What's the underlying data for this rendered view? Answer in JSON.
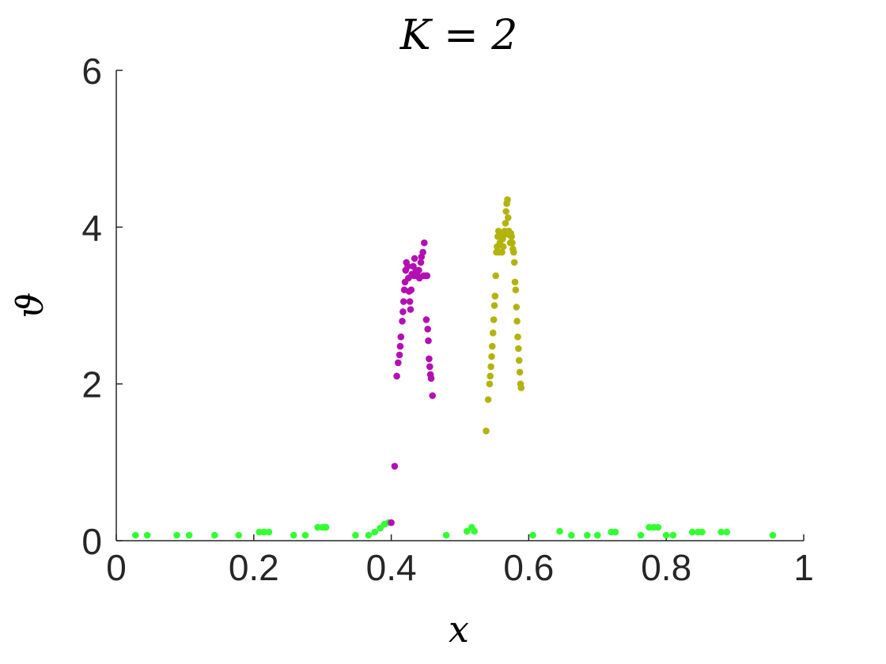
{
  "chart_data": {
    "type": "scatter",
    "title": "K = 2",
    "xlabel": "x",
    "ylabel": "ϑ",
    "xlim": [
      0,
      1
    ],
    "ylim": [
      0,
      6
    ],
    "xticks": [
      0,
      0.2,
      0.4,
      0.6,
      0.8,
      1
    ],
    "yticks": [
      0,
      2,
      4,
      6
    ],
    "xtick_labels": [
      "0",
      "0.2",
      "0.4",
      "0.6",
      "0.8",
      "1"
    ],
    "ytick_labels": [
      "0",
      "2",
      "4",
      "6"
    ],
    "grid": false,
    "legend": "none",
    "series": [
      {
        "color": "#33ff33",
        "points": [
          [
            0.028,
            0.07
          ],
          [
            0.045,
            0.07
          ],
          [
            0.088,
            0.07
          ],
          [
            0.106,
            0.07
          ],
          [
            0.143,
            0.07
          ],
          [
            0.178,
            0.07
          ],
          [
            0.208,
            0.11
          ],
          [
            0.215,
            0.11
          ],
          [
            0.222,
            0.11
          ],
          [
            0.258,
            0.07
          ],
          [
            0.275,
            0.07
          ],
          [
            0.293,
            0.17
          ],
          [
            0.3,
            0.17
          ],
          [
            0.305,
            0.17
          ],
          [
            0.348,
            0.07
          ],
          [
            0.367,
            0.07
          ],
          [
            0.376,
            0.11
          ],
          [
            0.384,
            0.16
          ],
          [
            0.39,
            0.21
          ],
          [
            0.396,
            0.23
          ],
          [
            0.48,
            0.07
          ],
          [
            0.51,
            0.12
          ],
          [
            0.517,
            0.17
          ],
          [
            0.521,
            0.12
          ],
          [
            0.606,
            0.07
          ],
          [
            0.645,
            0.12
          ],
          [
            0.662,
            0.07
          ],
          [
            0.685,
            0.07
          ],
          [
            0.7,
            0.07
          ],
          [
            0.72,
            0.11
          ],
          [
            0.726,
            0.11
          ],
          [
            0.763,
            0.07
          ],
          [
            0.775,
            0.17
          ],
          [
            0.782,
            0.17
          ],
          [
            0.788,
            0.17
          ],
          [
            0.8,
            0.07
          ],
          [
            0.81,
            0.07
          ],
          [
            0.838,
            0.11
          ],
          [
            0.846,
            0.11
          ],
          [
            0.852,
            0.11
          ],
          [
            0.88,
            0.11
          ],
          [
            0.888,
            0.11
          ],
          [
            0.955,
            0.07
          ]
        ]
      },
      {
        "color": "#b30fb3",
        "points": [
          [
            0.4,
            0.23
          ],
          [
            0.405,
            0.95
          ],
          [
            0.408,
            2.1
          ],
          [
            0.41,
            2.27
          ],
          [
            0.412,
            2.37
          ],
          [
            0.413,
            2.48
          ],
          [
            0.414,
            2.6
          ],
          [
            0.416,
            2.8
          ],
          [
            0.417,
            2.92
          ],
          [
            0.418,
            3.05
          ],
          [
            0.419,
            3.2
          ],
          [
            0.42,
            3.3
          ],
          [
            0.421,
            3.45
          ],
          [
            0.422,
            3.55
          ],
          [
            0.424,
            3.5
          ],
          [
            0.425,
            3.35
          ],
          [
            0.426,
            3.18
          ],
          [
            0.427,
            3.05
          ],
          [
            0.428,
            2.95
          ],
          [
            0.429,
            3.2
          ],
          [
            0.43,
            3.4
          ],
          [
            0.432,
            3.5
          ],
          [
            0.433,
            3.38
          ],
          [
            0.434,
            3.6
          ],
          [
            0.436,
            3.45
          ],
          [
            0.437,
            3.38
          ],
          [
            0.438,
            3.38
          ],
          [
            0.44,
            3.45
          ],
          [
            0.441,
            3.35
          ],
          [
            0.443,
            3.55
          ],
          [
            0.444,
            3.62
          ],
          [
            0.446,
            3.68
          ],
          [
            0.448,
            3.8
          ],
          [
            0.447,
            3.38
          ],
          [
            0.45,
            3.38
          ],
          [
            0.452,
            3.38
          ],
          [
            0.451,
            2.82
          ],
          [
            0.453,
            2.7
          ],
          [
            0.454,
            2.55
          ],
          [
            0.455,
            2.32
          ],
          [
            0.456,
            2.22
          ],
          [
            0.457,
            2.12
          ],
          [
            0.458,
            2.07
          ],
          [
            0.46,
            1.85
          ]
        ]
      },
      {
        "color": "#b3b30f",
        "points": [
          [
            0.538,
            1.4
          ],
          [
            0.541,
            1.8
          ],
          [
            0.543,
            2.0
          ],
          [
            0.544,
            2.1
          ],
          [
            0.545,
            2.22
          ],
          [
            0.546,
            2.35
          ],
          [
            0.547,
            2.48
          ],
          [
            0.548,
            2.65
          ],
          [
            0.549,
            2.82
          ],
          [
            0.55,
            3.0
          ],
          [
            0.551,
            3.12
          ],
          [
            0.552,
            3.38
          ],
          [
            0.553,
            3.68
          ],
          [
            0.554,
            3.75
          ],
          [
            0.555,
            3.88
          ],
          [
            0.556,
            3.95
          ],
          [
            0.557,
            3.68
          ],
          [
            0.558,
            3.8
          ],
          [
            0.559,
            3.92
          ],
          [
            0.561,
            3.68
          ],
          [
            0.562,
            3.85
          ],
          [
            0.563,
            3.75
          ],
          [
            0.564,
            3.9
          ],
          [
            0.565,
            3.95
          ],
          [
            0.566,
            4.05
          ],
          [
            0.567,
            4.2
          ],
          [
            0.568,
            4.3
          ],
          [
            0.569,
            4.35
          ],
          [
            0.57,
            4.12
          ],
          [
            0.571,
            3.95
          ],
          [
            0.572,
            3.9
          ],
          [
            0.573,
            3.8
          ],
          [
            0.574,
            3.92
          ],
          [
            0.575,
            3.88
          ],
          [
            0.576,
            3.8
          ],
          [
            0.577,
            3.72
          ],
          [
            0.578,
            3.68
          ],
          [
            0.579,
            3.55
          ],
          [
            0.58,
            3.3
          ],
          [
            0.581,
            3.2
          ],
          [
            0.582,
            2.98
          ],
          [
            0.583,
            2.8
          ],
          [
            0.584,
            2.6
          ],
          [
            0.585,
            2.45
          ],
          [
            0.586,
            2.3
          ],
          [
            0.587,
            2.15
          ],
          [
            0.588,
            2.0
          ],
          [
            0.589,
            1.95
          ]
        ]
      }
    ]
  }
}
